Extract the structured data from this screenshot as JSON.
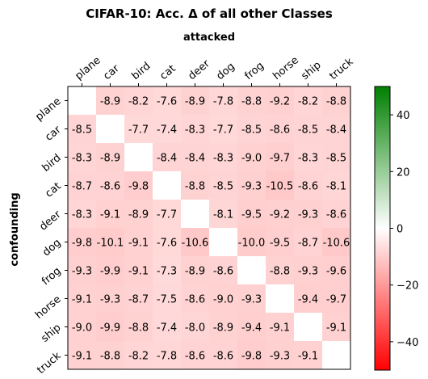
{
  "chart_data": {
    "type": "heatmap",
    "title": "CIFAR-10: Acc. Δ of all other Classes",
    "xlabel": "attacked",
    "ylabel": "confounding",
    "x_categories": [
      "plane",
      "car",
      "bird",
      "cat",
      "deer",
      "dog",
      "frog",
      "horse",
      "ship",
      "truck"
    ],
    "y_categories": [
      "plane",
      "car",
      "bird",
      "cat",
      "deer",
      "dog",
      "frog",
      "horse",
      "ship",
      "truck"
    ],
    "values": [
      [
        null,
        -8.9,
        -8.2,
        -7.6,
        -8.9,
        -7.8,
        -8.8,
        -9.2,
        -8.2,
        -8.8
      ],
      [
        -8.5,
        null,
        -7.7,
        -7.4,
        -8.3,
        -7.7,
        -8.5,
        -8.6,
        -8.5,
        -8.4
      ],
      [
        -8.3,
        -8.9,
        null,
        -8.4,
        -8.4,
        -8.3,
        -9.0,
        -9.7,
        -8.3,
        -8.5
      ],
      [
        -8.7,
        -8.6,
        -9.8,
        null,
        -8.8,
        -8.5,
        -9.3,
        -10.5,
        -8.6,
        -8.1
      ],
      [
        -8.3,
        -9.1,
        -8.9,
        -7.7,
        null,
        -8.1,
        -9.5,
        -9.2,
        -9.3,
        -8.6
      ],
      [
        -9.8,
        -10.1,
        -9.1,
        -7.6,
        -10.6,
        null,
        -10.0,
        -9.5,
        -8.7,
        -10.6
      ],
      [
        -9.3,
        -9.9,
        -9.1,
        -7.3,
        -8.9,
        -8.6,
        null,
        -8.8,
        -9.3,
        -9.6
      ],
      [
        -9.1,
        -9.3,
        -8.7,
        -7.5,
        -8.6,
        -9.0,
        -9.3,
        null,
        -9.4,
        -9.7
      ],
      [
        -9.0,
        -9.9,
        -8.8,
        -7.4,
        -8.0,
        -8.9,
        -9.4,
        -9.1,
        null,
        -9.1
      ],
      [
        -9.1,
        -8.8,
        -8.2,
        -7.8,
        -8.6,
        -8.6,
        -9.8,
        -9.3,
        -9.1,
        null
      ]
    ],
    "colorbar": {
      "range": [
        -50,
        50
      ],
      "ticks": [
        40,
        20,
        0,
        -20,
        -40
      ],
      "colors": {
        "low": "#ff0000",
        "mid": "#ffffff",
        "high": "#008000"
      }
    }
  }
}
